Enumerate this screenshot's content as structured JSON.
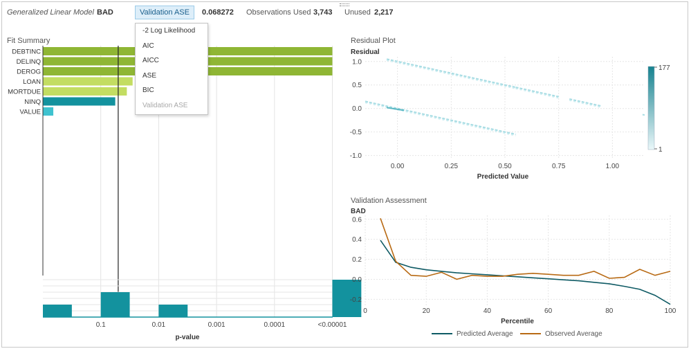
{
  "header": {
    "model_type": "Generalized Linear Model",
    "target": "BAD",
    "metric_selected": "Validation ASE",
    "metric_value": "0.068272",
    "observations_label": "Observations Used",
    "observations_value": "3,743",
    "unused_label": "Unused",
    "unused_value": "2,217"
  },
  "metric_dropdown": {
    "options": [
      "-2 Log Likelihood",
      "AIC",
      "AICC",
      "ASE",
      "BIC",
      "Validation ASE"
    ],
    "disabled_option": "Validation ASE"
  },
  "fit_summary": {
    "title": "Fit Summary",
    "xlabel": "p-value",
    "variables": [
      "DEBTINC",
      "DELINQ",
      "DEROG",
      "LOAN",
      "MORTDUE",
      "NINQ",
      "VALUE"
    ],
    "x_ticks": [
      "0.1",
      "0.01",
      "0.001",
      "0.0001",
      "<0.00001"
    ],
    "colors": {
      "dark_green": "#8fb634",
      "light_green": "#c3dd62",
      "teal": "#13929e",
      "light_teal": "#3fc2cf"
    }
  },
  "chart_data": [
    {
      "type": "bar",
      "name": "fit-summary",
      "orientation": "horizontal",
      "categories": [
        "DEBTINC",
        "DELINQ",
        "DEROG",
        "LOAN",
        "MORTDUE",
        "NINQ",
        "VALUE"
      ],
      "neg_log10_p": [
        5,
        5,
        5,
        1.55,
        1.45,
        1.25,
        0.18
      ],
      "color_group": [
        "dark_green",
        "dark_green",
        "dark_green",
        "light_green",
        "light_green",
        "teal",
        "light_teal"
      ],
      "reference_line_p": 0.05,
      "histogram": {
        "bins": [
          "1-0.1",
          "0.1-0.01",
          "0.01-0.001",
          "0.001-0.0001",
          "0.0001-0.00001",
          "<0.00001"
        ],
        "counts": [
          1,
          2,
          1,
          0,
          0,
          3
        ]
      }
    },
    {
      "type": "heatmap",
      "name": "residual-plot",
      "title": "Residual Plot",
      "xlabel": "Predicted Value",
      "ylabel": "Residual",
      "x_ticks": [
        "0.00",
        "0.25",
        "0.50",
        "0.75",
        "1.00"
      ],
      "y_ticks": [
        "1.0",
        "0.5",
        "0.0",
        "-0.5",
        "-1.0"
      ],
      "xlim": [
        -0.15,
        1.15
      ],
      "ylim": [
        -1.05,
        1.1
      ],
      "colorbar": {
        "min": "1",
        "max": "177"
      },
      "bands": [
        {
          "x": [
            -0.05,
            0.55
          ],
          "y": [
            1.05,
            0.45
          ]
        },
        {
          "x": [
            -0.15,
            0.55
          ],
          "y": [
            0.15,
            -0.55
          ]
        },
        {
          "x": [
            0.55,
            0.75
          ],
          "y": [
            0.45,
            0.25
          ]
        },
        {
          "x": [
            0.8,
            0.95
          ],
          "y": [
            0.2,
            0.05
          ]
        }
      ]
    },
    {
      "type": "line",
      "name": "validation-assessment",
      "title": "Validation Assessment",
      "ylabel": "BAD",
      "xlabel": "Percentile",
      "x_ticks": [
        "0",
        "20",
        "40",
        "60",
        "80",
        "100"
      ],
      "y_ticks": [
        "0.6",
        "0.4",
        "0.2",
        "0.0",
        "-0.2"
      ],
      "xlim": [
        0,
        100
      ],
      "ylim": [
        -0.26,
        0.64
      ],
      "x": [
        5,
        10,
        15,
        20,
        25,
        30,
        35,
        40,
        45,
        50,
        55,
        60,
        65,
        70,
        75,
        80,
        85,
        90,
        95,
        100
      ],
      "series": [
        {
          "name": "Predicted Average",
          "color": "#0e5a64",
          "values": [
            0.39,
            0.17,
            0.12,
            0.095,
            0.08,
            0.065,
            0.055,
            0.045,
            0.035,
            0.025,
            0.015,
            0.005,
            -0.005,
            -0.015,
            -0.03,
            -0.045,
            -0.07,
            -0.1,
            -0.16,
            -0.25
          ]
        },
        {
          "name": "Observed Average",
          "color": "#b86a14",
          "values": [
            0.61,
            0.18,
            0.04,
            0.03,
            0.07,
            0.0,
            0.04,
            0.03,
            0.03,
            0.05,
            0.06,
            0.05,
            0.04,
            0.04,
            0.08,
            0.01,
            0.02,
            0.1,
            0.04,
            0.08
          ]
        }
      ]
    }
  ]
}
